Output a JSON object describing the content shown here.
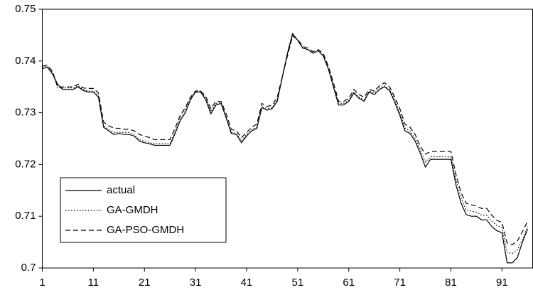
{
  "chart_data": {
    "type": "line",
    "x": [
      1,
      2,
      3,
      4,
      5,
      6,
      7,
      8,
      9,
      10,
      11,
      12,
      13,
      14,
      15,
      16,
      17,
      18,
      19,
      20,
      21,
      22,
      23,
      24,
      25,
      26,
      27,
      28,
      29,
      30,
      31,
      32,
      33,
      34,
      35,
      36,
      37,
      38,
      39,
      40,
      41,
      42,
      43,
      44,
      45,
      46,
      47,
      48,
      49,
      50,
      51,
      52,
      53,
      54,
      55,
      56,
      57,
      58,
      59,
      60,
      61,
      62,
      63,
      64,
      65,
      66,
      67,
      68,
      69,
      70,
      71,
      72,
      73,
      74,
      75,
      76,
      77,
      78,
      79,
      80,
      81,
      82,
      83,
      84,
      85,
      86,
      87,
      88,
      89,
      90,
      91,
      92,
      93,
      94,
      95,
      96
    ],
    "series": [
      {
        "name": "actual",
        "color": "#000000",
        "dash": "solid",
        "values": [
          0.7385,
          0.7388,
          0.7375,
          0.7355,
          0.7345,
          0.7345,
          0.7345,
          0.735,
          0.7343,
          0.734,
          0.734,
          0.733,
          0.7272,
          0.7265,
          0.7258,
          0.726,
          0.7258,
          0.7258,
          0.7255,
          0.7245,
          0.7242,
          0.724,
          0.7237,
          0.7237,
          0.7237,
          0.7237,
          0.726,
          0.7285,
          0.73,
          0.7325,
          0.734,
          0.734,
          0.7325,
          0.7298,
          0.7315,
          0.7318,
          0.729,
          0.726,
          0.7258,
          0.7242,
          0.7255,
          0.7265,
          0.727,
          0.731,
          0.7305,
          0.7308,
          0.7322,
          0.737,
          0.7415,
          0.7453,
          0.744,
          0.7425,
          0.7422,
          0.7415,
          0.742,
          0.741,
          0.7385,
          0.735,
          0.7315,
          0.7315,
          0.7322,
          0.7338,
          0.7328,
          0.7322,
          0.734,
          0.7335,
          0.7345,
          0.735,
          0.7343,
          0.732,
          0.7295,
          0.7265,
          0.726,
          0.7245,
          0.7222,
          0.7195,
          0.721,
          0.721,
          0.721,
          0.721,
          0.721,
          0.716,
          0.7125,
          0.7103,
          0.71,
          0.71,
          0.7093,
          0.7093,
          0.708,
          0.7072,
          0.7068,
          0.701,
          0.701,
          0.702,
          0.705,
          0.7075
        ]
      },
      {
        "name": "GA-GMDH",
        "color": "#000000",
        "dash": "dotted",
        "values": [
          0.7388,
          0.739,
          0.7378,
          0.7348,
          0.7348,
          0.7348,
          0.7348,
          0.7352,
          0.7345,
          0.7342,
          0.7342,
          0.7332,
          0.7275,
          0.7268,
          0.7262,
          0.7262,
          0.7262,
          0.7262,
          0.7258,
          0.7248,
          0.7245,
          0.7242,
          0.724,
          0.724,
          0.724,
          0.724,
          0.7262,
          0.729,
          0.7305,
          0.7328,
          0.7342,
          0.7342,
          0.7328,
          0.7302,
          0.7318,
          0.732,
          0.7292,
          0.7262,
          0.726,
          0.7246,
          0.7258,
          0.7268,
          0.7272,
          0.7312,
          0.7308,
          0.731,
          0.7325,
          0.7368,
          0.7412,
          0.745,
          0.744,
          0.7425,
          0.7422,
          0.7415,
          0.742,
          0.741,
          0.7385,
          0.7352,
          0.7318,
          0.7318,
          0.7324,
          0.734,
          0.733,
          0.7325,
          0.7342,
          0.7338,
          0.7348,
          0.7352,
          0.7345,
          0.7325,
          0.73,
          0.727,
          0.7265,
          0.725,
          0.7228,
          0.7205,
          0.7215,
          0.7215,
          0.7215,
          0.7215,
          0.7215,
          0.717,
          0.7135,
          0.7112,
          0.711,
          0.7108,
          0.7102,
          0.7102,
          0.709,
          0.7082,
          0.7078,
          0.703,
          0.7028,
          0.7035,
          0.7055,
          0.708
        ]
      },
      {
        "name": "GA-PSO-GMDH",
        "color": "#000000",
        "dash": "dashed",
        "values": [
          0.739,
          0.7392,
          0.738,
          0.735,
          0.735,
          0.735,
          0.735,
          0.7355,
          0.7348,
          0.7347,
          0.7347,
          0.7338,
          0.7282,
          0.7275,
          0.727,
          0.727,
          0.7268,
          0.7268,
          0.7265,
          0.7258,
          0.7255,
          0.7252,
          0.7248,
          0.7248,
          0.7248,
          0.7248,
          0.727,
          0.7295,
          0.731,
          0.733,
          0.7342,
          0.7342,
          0.7332,
          0.7308,
          0.7322,
          0.7322,
          0.7298,
          0.7268,
          0.7265,
          0.7252,
          0.7262,
          0.7272,
          0.7278,
          0.7318,
          0.7312,
          0.7315,
          0.733,
          0.737,
          0.741,
          0.7448,
          0.7442,
          0.7428,
          0.7425,
          0.7418,
          0.7422,
          0.7415,
          0.739,
          0.7358,
          0.7322,
          0.7322,
          0.7328,
          0.7345,
          0.7335,
          0.733,
          0.7345,
          0.7342,
          0.7352,
          0.7358,
          0.735,
          0.733,
          0.7308,
          0.7278,
          0.7272,
          0.7258,
          0.7235,
          0.722,
          0.7225,
          0.7225,
          0.7225,
          0.7225,
          0.7225,
          0.718,
          0.7145,
          0.7125,
          0.7122,
          0.712,
          0.7115,
          0.7115,
          0.7102,
          0.7092,
          0.7088,
          0.7048,
          0.7045,
          0.7052,
          0.707,
          0.709
        ]
      }
    ],
    "xlim": [
      1,
      97
    ],
    "xticks": [
      1,
      11,
      21,
      31,
      41,
      51,
      61,
      71,
      81,
      91
    ],
    "ylim": [
      0.7,
      0.75
    ],
    "yticks": [
      0.7,
      0.71,
      0.72,
      0.73,
      0.74,
      0.75
    ],
    "grid": false,
    "legend": "lower left"
  }
}
